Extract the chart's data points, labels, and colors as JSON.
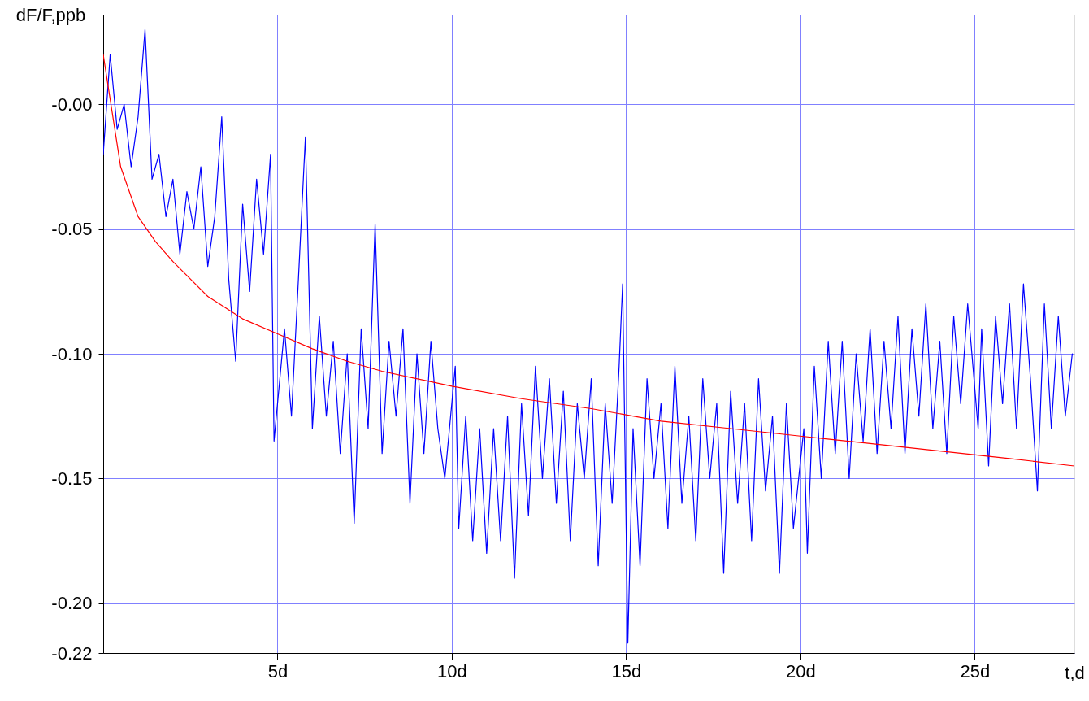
{
  "chart_data": {
    "type": "line",
    "xlabel": "t,d",
    "ylabel": "dF/F,ppb",
    "xlim": [
      0,
      27.86
    ],
    "xticks": [
      {
        "value": 5,
        "label": "5d"
      },
      {
        "value": 10,
        "label": "10d"
      },
      {
        "value": 15,
        "label": "15d"
      },
      {
        "value": 20,
        "label": "20d"
      },
      {
        "value": 25,
        "label": "25d"
      }
    ],
    "ylim": [
      -0.22,
      0.036
    ],
    "yticks": [
      {
        "value": 0,
        "label": "-0.00"
      },
      {
        "value": -0.05,
        "label": "-0.05"
      },
      {
        "value": -0.1,
        "label": "-0.10"
      },
      {
        "value": -0.15,
        "label": "-0.15"
      },
      {
        "value": -0.2,
        "label": "-0.20"
      },
      {
        "value": -0.22,
        "label": "-0.22"
      }
    ],
    "grid": true,
    "marker": "none",
    "line_style": "solid",
    "series": [
      {
        "color": "#0000ff",
        "x": [
          0.0,
          0.2,
          0.4,
          0.6,
          0.8,
          1.0,
          1.2,
          1.4,
          1.6,
          1.8,
          2.0,
          2.2,
          2.4,
          2.6,
          2.8,
          3.0,
          3.2,
          3.4,
          3.6,
          3.8,
          4.0,
          4.2,
          4.4,
          4.6,
          4.8,
          4.9,
          5.2,
          5.4,
          5.6,
          5.8,
          6.0,
          6.2,
          6.4,
          6.6,
          6.8,
          7.0,
          7.2,
          7.4,
          7.6,
          7.8,
          8.0,
          8.2,
          8.4,
          8.6,
          8.8,
          9.0,
          9.2,
          9.4,
          9.6,
          9.8,
          10.1,
          10.2,
          10.4,
          10.6,
          10.8,
          11.0,
          11.2,
          11.4,
          11.6,
          11.8,
          12.0,
          12.2,
          12.4,
          12.6,
          12.8,
          13.0,
          13.2,
          13.4,
          13.6,
          13.8,
          14.0,
          14.2,
          14.4,
          14.6,
          14.8,
          14.9,
          15.05,
          15.2,
          15.4,
          15.6,
          15.8,
          16.0,
          16.2,
          16.4,
          16.6,
          16.8,
          17.0,
          17.2,
          17.4,
          17.6,
          17.8,
          18.0,
          18.2,
          18.4,
          18.6,
          18.8,
          19.0,
          19.2,
          19.4,
          19.6,
          19.8,
          20.1,
          20.2,
          20.4,
          20.6,
          20.8,
          21.0,
          21.2,
          21.4,
          21.6,
          21.8,
          22.0,
          22.2,
          22.4,
          22.6,
          22.8,
          23.0,
          23.2,
          23.4,
          23.6,
          23.8,
          24.0,
          24.2,
          24.4,
          24.6,
          24.8,
          25.1,
          25.2,
          25.4,
          25.6,
          25.8,
          26.0,
          26.2,
          26.4,
          26.6,
          26.8,
          27.0,
          27.2,
          27.4,
          27.6,
          27.8
        ],
        "values": [
          -0.02,
          0.02,
          -0.01,
          0.0,
          -0.025,
          -0.005,
          0.03,
          -0.03,
          -0.02,
          -0.045,
          -0.03,
          -0.06,
          -0.035,
          -0.05,
          -0.025,
          -0.065,
          -0.045,
          -0.005,
          -0.07,
          -0.103,
          -0.04,
          -0.075,
          -0.03,
          -0.06,
          -0.02,
          -0.135,
          -0.09,
          -0.125,
          -0.07,
          -0.013,
          -0.13,
          -0.085,
          -0.125,
          -0.095,
          -0.14,
          -0.1,
          -0.168,
          -0.09,
          -0.13,
          -0.048,
          -0.14,
          -0.095,
          -0.125,
          -0.09,
          -0.16,
          -0.1,
          -0.14,
          -0.095,
          -0.13,
          -0.15,
          -0.105,
          -0.17,
          -0.125,
          -0.175,
          -0.13,
          -0.18,
          -0.13,
          -0.175,
          -0.125,
          -0.19,
          -0.12,
          -0.165,
          -0.105,
          -0.15,
          -0.11,
          -0.16,
          -0.115,
          -0.175,
          -0.12,
          -0.15,
          -0.11,
          -0.185,
          -0.12,
          -0.16,
          -0.105,
          -0.072,
          -0.216,
          -0.13,
          -0.185,
          -0.11,
          -0.15,
          -0.12,
          -0.17,
          -0.105,
          -0.16,
          -0.125,
          -0.175,
          -0.11,
          -0.15,
          -0.12,
          -0.188,
          -0.115,
          -0.16,
          -0.12,
          -0.175,
          -0.11,
          -0.155,
          -0.125,
          -0.188,
          -0.12,
          -0.17,
          -0.13,
          -0.18,
          -0.105,
          -0.15,
          -0.095,
          -0.14,
          -0.095,
          -0.15,
          -0.1,
          -0.135,
          -0.09,
          -0.14,
          -0.095,
          -0.13,
          -0.085,
          -0.14,
          -0.09,
          -0.125,
          -0.08,
          -0.13,
          -0.095,
          -0.14,
          -0.085,
          -0.12,
          -0.08,
          -0.13,
          -0.09,
          -0.145,
          -0.085,
          -0.12,
          -0.08,
          -0.13,
          -0.072,
          -0.11,
          -0.155,
          -0.08,
          -0.13,
          -0.085,
          -0.125,
          -0.1
        ]
      },
      {
        "color": "#ff0000",
        "x": [
          0,
          0.5,
          1,
          1.5,
          2,
          3,
          4,
          5,
          6,
          7,
          8,
          10,
          12,
          14,
          16,
          18,
          20,
          22,
          24,
          26,
          27.86
        ],
        "values": [
          0.02,
          -0.025,
          -0.045,
          -0.055,
          -0.063,
          -0.077,
          -0.086,
          -0.092,
          -0.098,
          -0.103,
          -0.107,
          -0.113,
          -0.118,
          -0.122,
          -0.127,
          -0.13,
          -0.133,
          -0.136,
          -0.139,
          -0.142,
          -0.145
        ]
      }
    ]
  }
}
